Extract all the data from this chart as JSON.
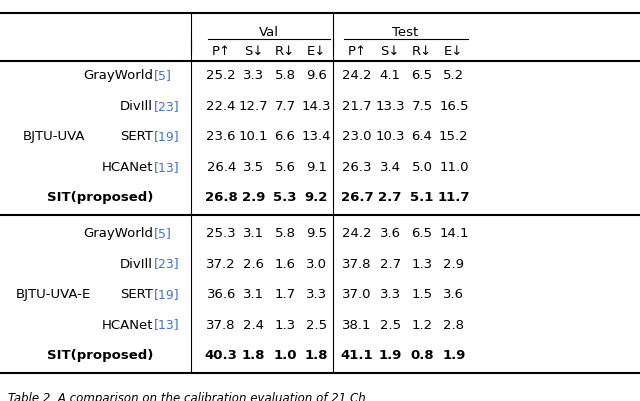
{
  "header_group1": "Val",
  "header_group2": "Test",
  "col_headers": [
    "P↑",
    "S↓",
    "R↓",
    "E↓",
    "P↑",
    "S↓",
    "R↓",
    "E↓"
  ],
  "row_group1_label": "BJTU-UVA",
  "row_group2_label": "BJTU-UVA-E",
  "methods": [
    "GrayWorld[5]",
    "DivIll[23]",
    "SERT[19]",
    "HCANet[13]",
    "SIT(proposed)"
  ],
  "group1_data": [
    [
      "25.2",
      "3.3",
      "5.8",
      "9.6",
      "24.2",
      "4.1",
      "6.5",
      "5.2"
    ],
    [
      "22.4",
      "12.7",
      "7.7",
      "14.3",
      "21.7",
      "13.3",
      "7.5",
      "16.5"
    ],
    [
      "23.6",
      "10.1",
      "6.6",
      "13.4",
      "23.0",
      "10.3",
      "6.4",
      "15.2"
    ],
    [
      "26.4",
      "3.5",
      "5.6",
      "9.1",
      "26.3",
      "3.4",
      "5.0",
      "11.0"
    ],
    [
      "26.8",
      "2.9",
      "5.3",
      "9.2",
      "26.7",
      "2.7",
      "5.1",
      "11.7"
    ]
  ],
  "group2_data": [
    [
      "25.3",
      "3.1",
      "5.8",
      "9.5",
      "24.2",
      "3.6",
      "6.5",
      "14.1"
    ],
    [
      "37.2",
      "2.6",
      "1.6",
      "3.0",
      "37.8",
      "2.7",
      "1.3",
      "2.9"
    ],
    [
      "36.6",
      "3.1",
      "1.7",
      "3.3",
      "37.0",
      "3.3",
      "1.5",
      "3.6"
    ],
    [
      "37.8",
      "2.4",
      "1.3",
      "2.5",
      "38.1",
      "2.5",
      "1.2",
      "2.8"
    ],
    [
      "40.3",
      "1.8",
      "1.0",
      "1.8",
      "41.1",
      "1.9",
      "0.8",
      "1.9"
    ]
  ],
  "bold_row_index": 4,
  "ref_color": "#4472C4",
  "background_color": "#ffffff",
  "text_color": "#000000",
  "font_size": 9.5,
  "caption_text": "Table 2. A comparison on the calibration evaluation of 21 Ch..."
}
